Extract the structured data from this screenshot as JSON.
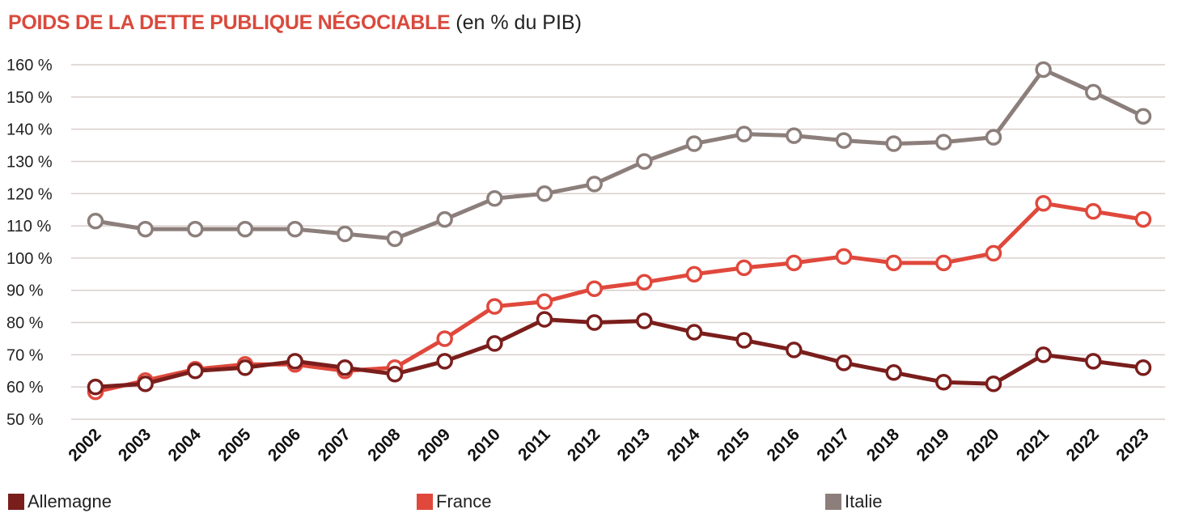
{
  "title": {
    "main": "POIDS DE LA DETTE PUBLIQUE NÉGOCIABLE",
    "sub": " (en % du PIB)"
  },
  "colors": {
    "allemagne": "#7a1e1c",
    "france": "#e0483c",
    "italie": "#8c7f7b",
    "grid": "#d9cfcc"
  },
  "legend": [
    {
      "label": "Allemagne",
      "key": "allemagne"
    },
    {
      "label": "France",
      "key": "france"
    },
    {
      "label": "Italie",
      "key": "italie"
    }
  ],
  "chart_data": {
    "type": "line",
    "title": "POIDS DE LA DETTE PUBLIQUE NÉGOCIABLE (en % du PIB)",
    "xlabel": "",
    "ylabel": "",
    "ylim": [
      50,
      160
    ],
    "yticks": [
      50,
      60,
      70,
      80,
      90,
      100,
      110,
      120,
      130,
      140,
      150,
      160
    ],
    "ytick_labels": [
      "50 %",
      "60 %",
      "70 %",
      "80 %",
      "90 %",
      "100 %",
      "110 %",
      "120 %",
      "130 %",
      "140 %",
      "150 %",
      "160 %"
    ],
    "grid": true,
    "legend_position": "bottom",
    "categories": [
      "2002",
      "2003",
      "2004",
      "2005",
      "2006",
      "2007",
      "2008",
      "2009",
      "2010",
      "2011",
      "2012",
      "2013",
      "2014",
      "2015",
      "2016",
      "2017",
      "2018",
      "2019",
      "2020",
      "2021",
      "2022",
      "2023"
    ],
    "series": [
      {
        "name": "Italie",
        "key": "italie",
        "values": [
          111.5,
          109,
          109,
          109,
          109,
          107.5,
          106,
          112,
          118.5,
          120,
          123,
          130,
          135.5,
          138.5,
          138,
          136.5,
          135.5,
          136,
          137.5,
          158.5,
          151.5,
          144
        ]
      },
      {
        "name": "France",
        "key": "france",
        "values": [
          58.5,
          62,
          65.5,
          67,
          67,
          65,
          66,
          75,
          85,
          86.5,
          90.5,
          92.5,
          95,
          97,
          98.5,
          100.5,
          98.5,
          98.5,
          101.5,
          117,
          114.5,
          112
        ]
      },
      {
        "name": "Allemagne",
        "key": "allemagne",
        "values": [
          60,
          61,
          65,
          66,
          68,
          66,
          64,
          68,
          73.5,
          81,
          80,
          80.5,
          77,
          74.5,
          71.5,
          67.5,
          64.5,
          61.5,
          61,
          70,
          68,
          66
        ]
      }
    ]
  }
}
